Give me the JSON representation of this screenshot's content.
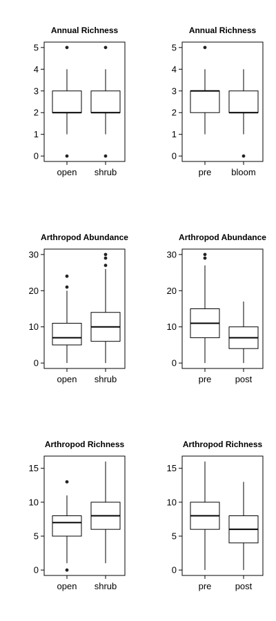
{
  "chart_data": [
    {
      "type": "boxplot",
      "title": "Annual Richness",
      "ylim": [
        -0.25,
        5.25
      ],
      "yticks": [
        0,
        1,
        2,
        3,
        4,
        5
      ],
      "yticklabels": [
        "0",
        "1",
        "2",
        "3",
        "4",
        "5"
      ],
      "categories": [
        "open",
        "shrub"
      ],
      "boxes": [
        {
          "whisker_low": 1,
          "q1": 2,
          "median": 2,
          "q3": 3,
          "whisker_high": 4,
          "outliers": [
            0,
            5
          ]
        },
        {
          "whisker_low": 1,
          "q1": 2,
          "median": 2,
          "q3": 3,
          "whisker_high": 4,
          "outliers": [
            0,
            5
          ]
        }
      ]
    },
    {
      "type": "boxplot",
      "title": "Annual Richness",
      "ylim": [
        -0.25,
        5.25
      ],
      "yticks": [
        0,
        1,
        2,
        3,
        4,
        5
      ],
      "yticklabels": [
        "0",
        "1",
        "2",
        "3",
        "4",
        "5"
      ],
      "categories": [
        "pre",
        "bloom"
      ],
      "boxes": [
        {
          "whisker_low": 1,
          "q1": 2,
          "median": 3,
          "q3": 3,
          "whisker_high": 4,
          "outliers": [
            5
          ]
        },
        {
          "whisker_low": 1,
          "q1": 2,
          "median": 2,
          "q3": 3,
          "whisker_high": 4,
          "outliers": [
            0
          ]
        }
      ]
    },
    {
      "type": "boxplot",
      "title": "Arthropod Abundance",
      "ylim": [
        -1.5,
        31.5
      ],
      "yticks": [
        0,
        10,
        20,
        30
      ],
      "yticklabels": [
        "0",
        "10",
        "20",
        "30"
      ],
      "categories": [
        "open",
        "shrub"
      ],
      "boxes": [
        {
          "whisker_low": 0,
          "q1": 5,
          "median": 7,
          "q3": 11,
          "whisker_high": 20,
          "outliers": [
            21,
            24
          ]
        },
        {
          "whisker_low": 0,
          "q1": 6,
          "median": 10,
          "q3": 14,
          "whisker_high": 26,
          "outliers": [
            27,
            29,
            30
          ]
        }
      ]
    },
    {
      "type": "boxplot",
      "title": "Arthropod Abundance",
      "ylim": [
        -1.5,
        31.5
      ],
      "yticks": [
        0,
        10,
        20,
        30
      ],
      "yticklabels": [
        "0",
        "10",
        "20",
        "30"
      ],
      "categories": [
        "pre",
        "post"
      ],
      "boxes": [
        {
          "whisker_low": 0,
          "q1": 7,
          "median": 11,
          "q3": 15,
          "whisker_high": 27,
          "outliers": [
            29,
            30
          ]
        },
        {
          "whisker_low": 0,
          "q1": 4,
          "median": 7,
          "q3": 10,
          "whisker_high": 17,
          "outliers": []
        }
      ]
    },
    {
      "type": "boxplot",
      "title": "Arthropod Richness",
      "ylim": [
        -0.8,
        16.8
      ],
      "yticks": [
        0,
        5,
        10,
        15
      ],
      "yticklabels": [
        "0",
        "5",
        "10",
        "15"
      ],
      "categories": [
        "open",
        "shrub"
      ],
      "boxes": [
        {
          "whisker_low": 1,
          "q1": 5,
          "median": 7,
          "q3": 8,
          "whisker_high": 11,
          "outliers": [
            0,
            13
          ]
        },
        {
          "whisker_low": 1,
          "q1": 6,
          "median": 8,
          "q3": 10,
          "whisker_high": 16,
          "outliers": []
        }
      ]
    },
    {
      "type": "boxplot",
      "title": "Arthropod Richness",
      "ylim": [
        -0.8,
        16.8
      ],
      "yticks": [
        0,
        5,
        10,
        15
      ],
      "yticklabels": [
        "0",
        "5",
        "10",
        "15"
      ],
      "categories": [
        "pre",
        "post"
      ],
      "boxes": [
        {
          "whisker_low": 0,
          "q1": 6,
          "median": 8,
          "q3": 10,
          "whisker_high": 16,
          "outliers": []
        },
        {
          "whisker_low": 0,
          "q1": 4,
          "median": 6,
          "q3": 8,
          "whisker_high": 13,
          "outliers": []
        }
      ]
    }
  ]
}
